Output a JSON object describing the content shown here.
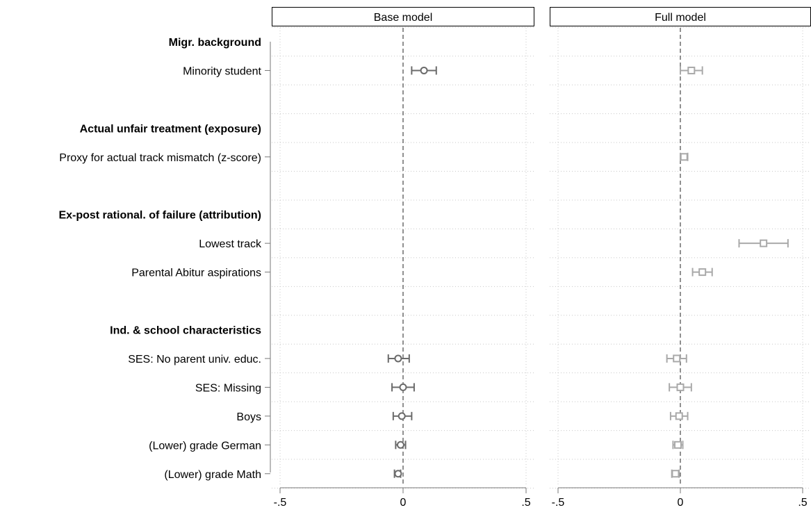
{
  "chart_data": {
    "type": "scatter",
    "subtype": "coefficient-plot",
    "panels": [
      {
        "title": "Base model",
        "marker": "circle",
        "color": "#6b6b6b"
      },
      {
        "title": "Full model",
        "marker": "square",
        "color": "#a9a9a9"
      }
    ],
    "xlim": [
      -0.5,
      0.5
    ],
    "xticks": [
      -0.5,
      0,
      0.5
    ],
    "xtick_labels": [
      "-.5",
      "0",
      ".5"
    ],
    "reference_line": 0,
    "grid": true,
    "rows": [
      {
        "label": "Migr. background",
        "header": true
      },
      {
        "label": "Minority student",
        "header": false
      },
      {
        "label": "",
        "header": false
      },
      {
        "label": "Actual unfair treatment (exposure)",
        "header": true
      },
      {
        "label": "Proxy for actual track mismatch (z-score)",
        "header": false
      },
      {
        "label": "",
        "header": false
      },
      {
        "label": "Ex-post rational. of failure (attribution)",
        "header": true
      },
      {
        "label": "Lowest track",
        "header": false
      },
      {
        "label": "Parental Abitur aspirations",
        "header": false
      },
      {
        "label": "",
        "header": false
      },
      {
        "label": "Ind. & school characteristics",
        "header": true
      },
      {
        "label": "SES: No parent univ. educ.",
        "header": false
      },
      {
        "label": "SES: Missing",
        "header": false
      },
      {
        "label": "Boys",
        "header": false
      },
      {
        "label": "(Lower) grade German",
        "header": false
      },
      {
        "label": "(Lower) grade Math",
        "header": false
      }
    ],
    "series": [
      {
        "panel": 0,
        "points": [
          {
            "row": 1,
            "est": 0.085,
            "lo": 0.035,
            "hi": 0.135
          },
          {
            "row": 11,
            "est": -0.02,
            "lo": -0.06,
            "hi": 0.025
          },
          {
            "row": 12,
            "est": 0.0,
            "lo": -0.045,
            "hi": 0.045
          },
          {
            "row": 13,
            "est": -0.005,
            "lo": -0.04,
            "hi": 0.035
          },
          {
            "row": 14,
            "est": -0.01,
            "lo": -0.03,
            "hi": 0.01
          },
          {
            "row": 15,
            "est": -0.02,
            "lo": -0.035,
            "hi": -0.01
          }
        ]
      },
      {
        "panel": 1,
        "points": [
          {
            "row": 1,
            "est": 0.045,
            "lo": 0.0,
            "hi": 0.09
          },
          {
            "row": 4,
            "est": 0.015,
            "lo": 0.0,
            "hi": 0.03
          },
          {
            "row": 7,
            "est": 0.34,
            "lo": 0.24,
            "hi": 0.44
          },
          {
            "row": 8,
            "est": 0.09,
            "lo": 0.05,
            "hi": 0.13
          },
          {
            "row": 11,
            "est": -0.015,
            "lo": -0.055,
            "hi": 0.025
          },
          {
            "row": 12,
            "est": 0.0,
            "lo": -0.045,
            "hi": 0.045
          },
          {
            "row": 13,
            "est": -0.005,
            "lo": -0.04,
            "hi": 0.03
          },
          {
            "row": 14,
            "est": -0.01,
            "lo": -0.03,
            "hi": 0.01
          },
          {
            "row": 15,
            "est": -0.02,
            "lo": -0.035,
            "hi": -0.005
          }
        ]
      }
    ]
  }
}
